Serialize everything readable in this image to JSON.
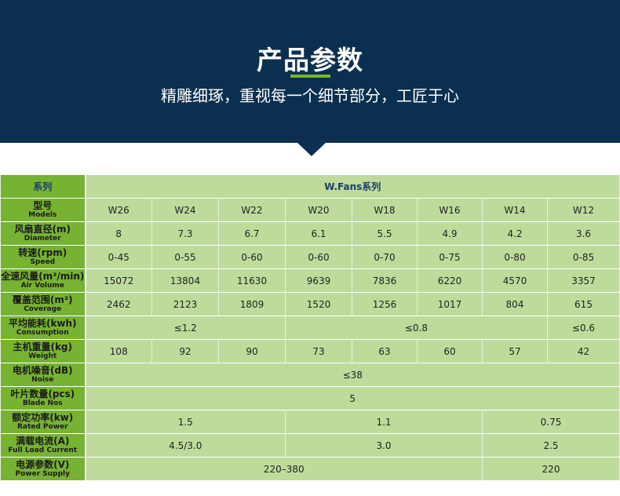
{
  "header": {
    "title": "产品参数",
    "subtitle": "精雕细琢，重视每一个细节部分，工匠于心"
  },
  "table": {
    "series_label": "系列",
    "series_value": "W.Fans系列",
    "models": {
      "cn": "型号",
      "en": "Models",
      "values": [
        "W26",
        "W24",
        "W22",
        "W20",
        "W18",
        "W16",
        "W14",
        "W12"
      ]
    },
    "diameter": {
      "cn": "风扇直径(m)",
      "en": "Diameter",
      "values": [
        "8",
        "7.3",
        "6.7",
        "6.1",
        "5.5",
        "4.9",
        "4.2",
        "3.6"
      ]
    },
    "speed": {
      "cn": "转速(rpm)",
      "en": "Speed",
      "values": [
        "0-45",
        "0-55",
        "0-60",
        "0-60",
        "0-70",
        "0-75",
        "0-80",
        "0-85"
      ]
    },
    "air_volume": {
      "cn": "全速风量(m³/min)",
      "en": "Air Volume",
      "values": [
        "15072",
        "13804",
        "11630",
        "9639",
        "7836",
        "6220",
        "4570",
        "3357"
      ]
    },
    "coverage": {
      "cn": "覆盖范围(m²)",
      "en": "Coverage",
      "values": [
        "2462",
        "2123",
        "1809",
        "1520",
        "1256",
        "1017",
        "804",
        "615"
      ]
    },
    "consumption": {
      "cn": "平均能耗(kwh)",
      "en": "Consumption",
      "values": [
        "≤1.2",
        "≤0.8",
        "≤0.6"
      ]
    },
    "weight": {
      "cn": "主机重量(kg)",
      "en": "Weight",
      "values": [
        "108",
        "92",
        "90",
        "73",
        "63",
        "60",
        "57",
        "42"
      ]
    },
    "noise": {
      "cn": "电机噪音(dB)",
      "en": "Noise",
      "value": "≤38"
    },
    "blades": {
      "cn": "叶片数量(pcs)",
      "en": "Blade Nos",
      "value": "5"
    },
    "power": {
      "cn": "额定功率(kw)",
      "en": "Rated Power",
      "values": [
        "1.5",
        "1.1",
        "0.75"
      ]
    },
    "current": {
      "cn": "满载电流(A)",
      "en": "Full Load Current",
      "values": [
        "4.5/3.0",
        "3.0",
        "2.5"
      ]
    },
    "supply": {
      "cn": "电源参数(V)",
      "en": "Power Supply",
      "values": [
        "220–380",
        "220"
      ]
    }
  }
}
